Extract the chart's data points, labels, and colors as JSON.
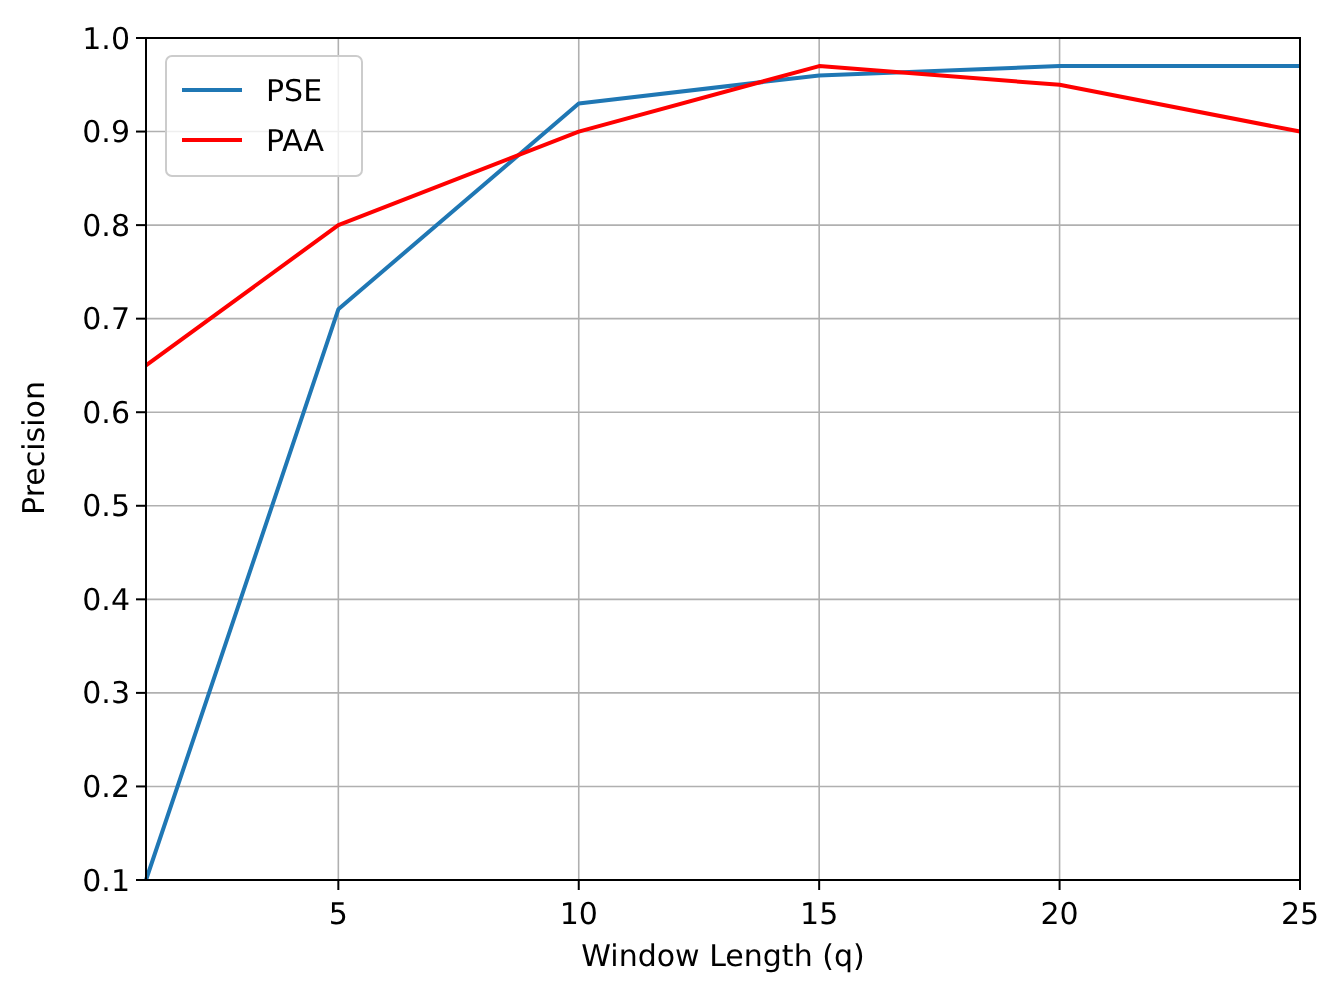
{
  "chart_data": {
    "type": "line",
    "xlabel": "Window Length (q)",
    "ylabel": "Precision",
    "x": [
      1,
      5,
      10,
      15,
      20,
      25
    ],
    "series": [
      {
        "name": "PSE",
        "color": "#1f77b4",
        "values": [
          0.1,
          0.71,
          0.93,
          0.96,
          0.97,
          0.97
        ]
      },
      {
        "name": "PAA",
        "color": "#ff0000",
        "values": [
          0.65,
          0.8,
          0.9,
          0.97,
          0.95,
          0.9
        ]
      }
    ],
    "xlim": [
      1,
      25
    ],
    "xticks": [
      5,
      10,
      15,
      20,
      25
    ],
    "ylim": [
      0.1,
      1.0
    ],
    "yticks": [
      0.1,
      0.2,
      0.3,
      0.4,
      0.5,
      0.6,
      0.7,
      0.8,
      0.9,
      {
        "value": 1.0,
        "label": "1.0"
      }
    ],
    "grid": true,
    "legend": "top left",
    "marker": "none",
    "line_style": "solid"
  }
}
